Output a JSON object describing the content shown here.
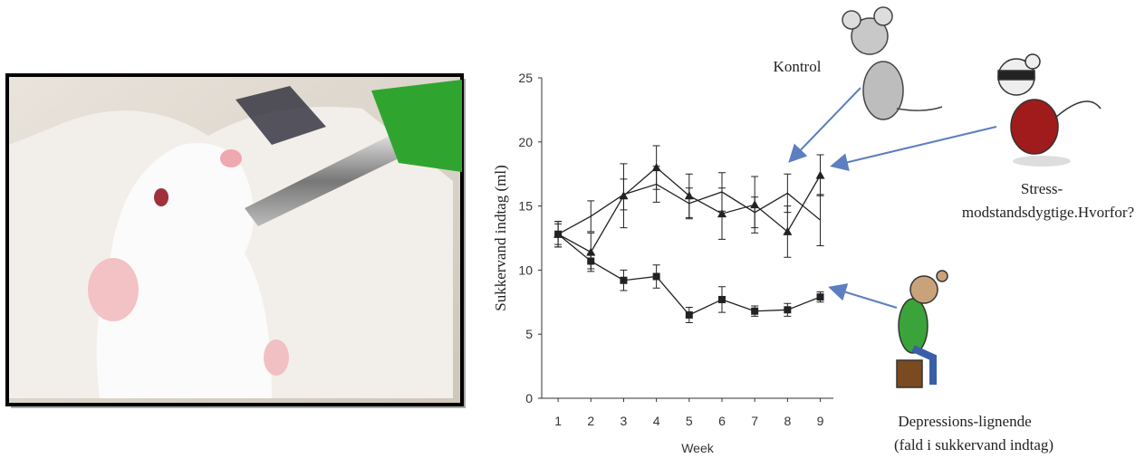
{
  "chart_data": {
    "type": "line",
    "x_label": "Week",
    "y_label": "Sukkervand indtag  (ml)",
    "x": [
      1,
      2,
      3,
      4,
      5,
      6,
      7,
      8,
      9
    ],
    "xlim": [
      0.5,
      9.4
    ],
    "xticks": [
      1,
      2,
      3,
      4,
      5,
      6,
      7,
      8,
      9
    ],
    "ylim": [
      0,
      25
    ],
    "yticks": [
      0,
      5,
      10,
      15,
      20,
      25
    ],
    "series": [
      {
        "color": "#222222",
        "marker": "triangle",
        "values": [
          12.8,
          11.4,
          15.8,
          18.0,
          15.8,
          14.4,
          15.1,
          13.0,
          17.4
        ],
        "errors": [
          1.0,
          1.5,
          2.5,
          1.7,
          1.7,
          2.0,
          2.2,
          2.0,
          1.6
        ]
      },
      {
        "color": "#222222",
        "marker": "none",
        "values": [
          12.8,
          14.2,
          15.9,
          16.7,
          15.2,
          16.1,
          14.5,
          16.0,
          13.9
        ],
        "errors": [
          1.0,
          1.2,
          1.2,
          1.4,
          1.2,
          1.5,
          1.2,
          1.5,
          2.0
        ]
      },
      {
        "color": "#222222",
        "marker": "square",
        "values": [
          12.8,
          10.7,
          9.2,
          9.5,
          6.5,
          7.7,
          6.8,
          6.9,
          7.9
        ],
        "errors": [
          0.8,
          0.6,
          0.8,
          0.9,
          0.6,
          1.0,
          0.4,
          0.5,
          0.4
        ]
      }
    ],
    "annotations": [
      {
        "lines": [
          "Kontrol"
        ]
      },
      {
        "lines": [
          "Stress-",
          "modstandsdygtige.Hvorfor?"
        ]
      },
      {
        "lines": [
          "Depressions-lignende",
          "(fald i sukkervand indtag)"
        ]
      }
    ]
  }
}
